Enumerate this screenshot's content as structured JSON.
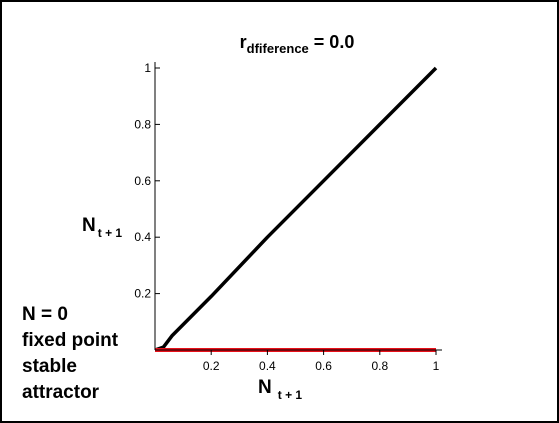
{
  "chart_data": {
    "type": "line",
    "title": {
      "main": "r",
      "sub": "dfiference",
      "rest": " = 0.0"
    },
    "xlabel": {
      "main": "N",
      "sub": "t + 1"
    },
    "ylabel": {
      "main": "N",
      "sub": "t + 1"
    },
    "xlim": [
      0,
      1
    ],
    "ylim": [
      0,
      1
    ],
    "x_ticks": [
      {
        "value": 0.2,
        "label": "0.2"
      },
      {
        "value": 0.4,
        "label": "0.4"
      },
      {
        "value": 0.6,
        "label": "0.6"
      },
      {
        "value": 0.8,
        "label": "0.8"
      },
      {
        "value": 1.0,
        "label": "1"
      }
    ],
    "y_ticks": [
      {
        "value": 0.2,
        "label": "0.2"
      },
      {
        "value": 0.4,
        "label": "0.4"
      },
      {
        "value": 0.6,
        "label": "0.6"
      },
      {
        "value": 0.8,
        "label": "0.8"
      },
      {
        "value": 1.0,
        "label": "1"
      }
    ],
    "series": [
      {
        "color": "#000000",
        "x": [
          0,
          0.03,
          0.06,
          0.1,
          0.2,
          0.4,
          0.6,
          0.8,
          1.0
        ],
        "y": [
          0,
          0.01,
          0.05,
          0.09,
          0.19,
          0.4,
          0.6,
          0.8,
          1.0
        ]
      },
      {
        "color": "#e8101a",
        "x": [
          0,
          1.0
        ],
        "y": [
          0,
          0
        ]
      }
    ],
    "grid": false,
    "annotation": [
      "N = 0",
      "fixed point",
      "stable",
      "attractor"
    ]
  }
}
